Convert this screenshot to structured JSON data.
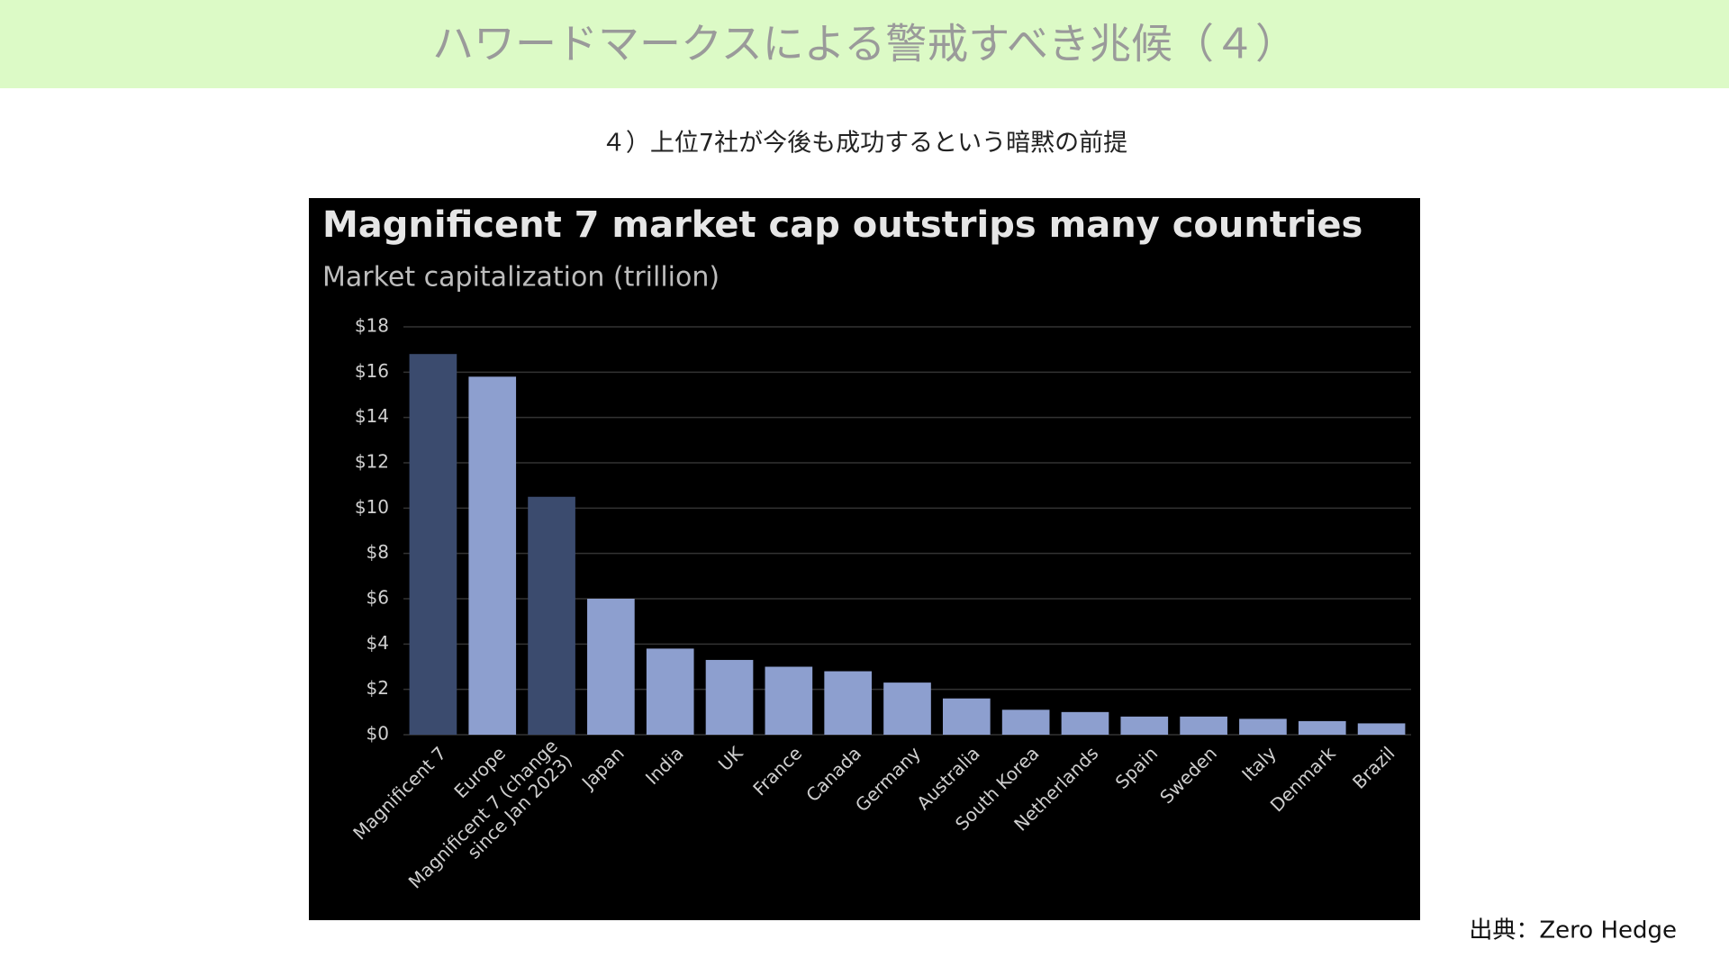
{
  "slide": {
    "title": "ハワードマークスによる警戒すべき兆候（４）",
    "subtitle": "４）上位7社が今後も成功するという暗黙の前提",
    "source": "出典：Zero Hedge"
  },
  "chart_data": {
    "type": "bar",
    "title": "Magnificent 7 market cap outstrips many countries",
    "subtitle": "Market capitalization (trillion)",
    "categories": [
      "Magnificent 7",
      "Europe",
      "Magnificent 7 (change\nsince Jan 2023)",
      "Japan",
      "India",
      "UK",
      "France",
      "Canada",
      "Germany",
      "Australia",
      "South Korea",
      "Netherlands",
      "Spain",
      "Sweden",
      "Italy",
      "Denmark",
      "Brazil"
    ],
    "values": [
      16.8,
      15.8,
      10.5,
      6.0,
      3.8,
      3.3,
      3.0,
      2.8,
      2.3,
      1.6,
      1.1,
      1.0,
      0.8,
      0.8,
      0.7,
      0.6,
      0.5
    ],
    "colors": [
      "#3b4b6e",
      "#8d9fcf",
      "#3b4b6e",
      "#8d9fcf",
      "#8d9fcf",
      "#8d9fcf",
      "#8d9fcf",
      "#8d9fcf",
      "#8d9fcf",
      "#8d9fcf",
      "#8d9fcf",
      "#8d9fcf",
      "#8d9fcf",
      "#8d9fcf",
      "#8d9fcf",
      "#8d9fcf",
      "#8d9fcf"
    ],
    "ylim": [
      0,
      18
    ],
    "yticks": [
      {
        "value": 0,
        "label": "$0"
      },
      {
        "value": 2,
        "label": "$2"
      },
      {
        "value": 4,
        "label": "$4"
      },
      {
        "value": 6,
        "label": "$6"
      },
      {
        "value": 8,
        "label": "$8"
      },
      {
        "value": 10,
        "label": "$10"
      },
      {
        "value": 12,
        "label": "$12"
      },
      {
        "value": 14,
        "label": "$14"
      },
      {
        "value": 16,
        "label": "$16"
      },
      {
        "value": 18,
        "label": "$18"
      }
    ],
    "grid": true
  }
}
